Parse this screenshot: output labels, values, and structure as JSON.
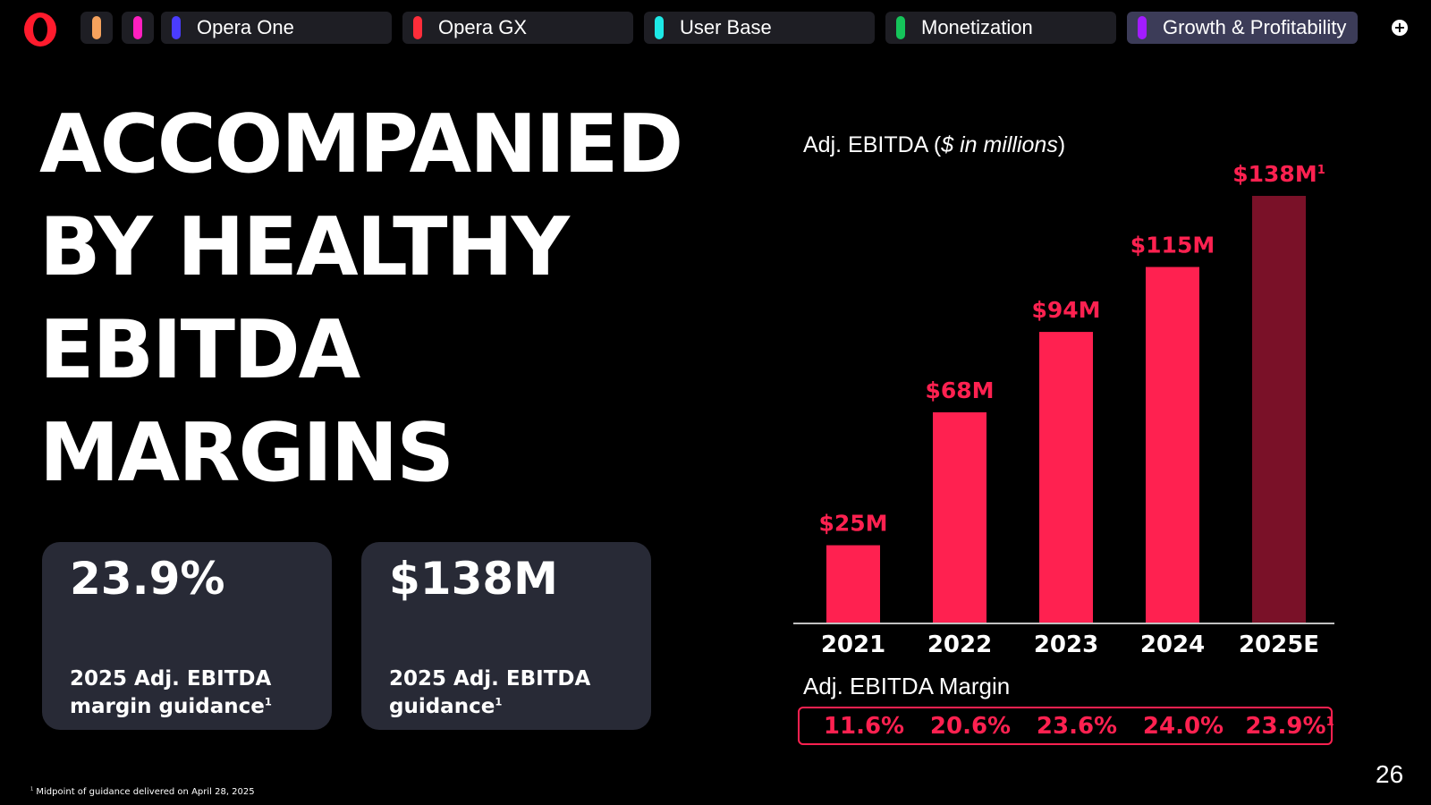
{
  "tabbar": {
    "mini_tabs": [
      {
        "color": "#f5a25d"
      },
      {
        "color": "#ff1fbf"
      }
    ],
    "tabs": [
      {
        "label": "Opera One",
        "color": "#4a3cff",
        "active": false
      },
      {
        "label": "Opera GX",
        "color": "#ff2d3a",
        "active": false
      },
      {
        "label": "User Base",
        "color": "#1de9e6",
        "active": false
      },
      {
        "label": "Monetization",
        "color": "#15c45a",
        "active": false
      },
      {
        "label": "Growth & Profitability",
        "color": "#a21cff",
        "active": true
      }
    ],
    "new_tab_symbol": "+"
  },
  "headline": {
    "lines": [
      "ACCOMPANIED",
      "BY HEALTHY",
      "EBITDA",
      "MARGINS"
    ]
  },
  "cards": [
    {
      "value": "23.9%",
      "label": "2025 Adj. EBITDA margin guidance",
      "footnote_mark": "1"
    },
    {
      "value": "$138M",
      "label": "2025 Adj. EBITDA guidance",
      "footnote_mark": "1"
    }
  ],
  "chart_data": {
    "type": "bar",
    "title_prefix": "Adj. EBITDA (",
    "title_italic": "$ in millions",
    "title_suffix": ")",
    "categories": [
      "2021",
      "2022",
      "2023",
      "2024",
      "2025E"
    ],
    "values": [
      25,
      68,
      94,
      115,
      138
    ],
    "value_labels": [
      "$25M",
      "$68M",
      "$94M",
      "$115M",
      "$138M"
    ],
    "value_label_marks": [
      "",
      "",
      "",
      "",
      "1"
    ],
    "bar_colors": [
      "#ff2150",
      "#ff2150",
      "#ff2150",
      "#ff2150",
      "#7a1128"
    ],
    "ylim": [
      0,
      138
    ],
    "margin_title": "Adj. EBITDA Margin",
    "margins": [
      "11.6%",
      "20.6%",
      "23.6%",
      "24.0%",
      "23.9%"
    ],
    "margin_marks": [
      "",
      "",
      "",
      "",
      "1"
    ]
  },
  "footnote": {
    "mark": "1",
    "text": "Midpoint of guidance delivered on April 28, 2025"
  },
  "page_number": "26",
  "colors": {
    "accent": "#ff2150",
    "projection": "#7a1128",
    "card_bg": "#282a36"
  }
}
